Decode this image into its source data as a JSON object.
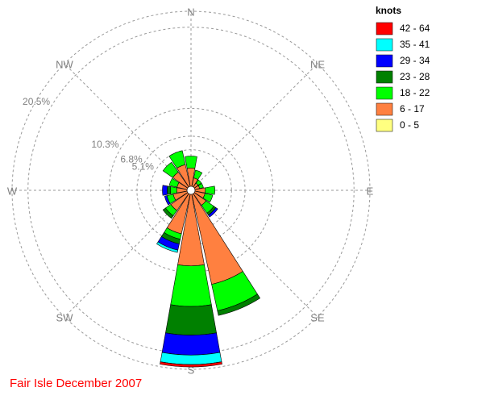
{
  "chart_data": {
    "type": "windrose",
    "title": "Fair Isle December 2007",
    "legend_title": "knots",
    "categories": [
      "N",
      null,
      "NE",
      null,
      "E",
      null,
      "SE",
      null,
      "S",
      null,
      "SW",
      null,
      "W",
      null,
      "NW",
      null
    ],
    "rlim": [
      0,
      22.5
    ],
    "rticks": [
      {
        "value": 5.1,
        "label": "5.1%"
      },
      {
        "value": 6.8,
        "label": "6.8%"
      },
      {
        "value": 10.3,
        "label": "10.3%"
      },
      {
        "value": 20.5,
        "label": "20.5%"
      }
    ],
    "series": [
      {
        "name": "0 - 5",
        "color": "#ffff80",
        "values": [
          0.3,
          0.3,
          0.3,
          0.3,
          0.3,
          0.3,
          0.3,
          0.3,
          0.3,
          0.3,
          0.3,
          0.3,
          0.3,
          0.3,
          0.3,
          0.3
        ]
      },
      {
        "name": "6 - 17",
        "color": "#ff8040",
        "values": [
          2.5,
          1.3,
          0.8,
          0.8,
          1.5,
          1.5,
          2.0,
          11.8,
          9.2,
          5.3,
          2.8,
          2.0,
          1.5,
          1.5,
          2.5,
          3.0
        ]
      },
      {
        "name": "18 - 22",
        "color": "#00ff00",
        "values": [
          1.5,
          1.0,
          0.5,
          0.5,
          1.2,
          1.0,
          1.2,
          3.4,
          5.1,
          0.7,
          0.8,
          0.8,
          0.8,
          1.0,
          1.5,
          1.8
        ]
      },
      {
        "name": "23 - 28",
        "color": "#008000",
        "values": [
          0,
          0,
          0,
          0,
          0,
          0,
          0.3,
          0.6,
          3.6,
          0.6,
          0.4,
          0,
          0.4,
          0,
          0,
          0
        ]
      },
      {
        "name": "29 - 34",
        "color": "#0000ff",
        "values": [
          0,
          0,
          0,
          0,
          0,
          0,
          0.3,
          0,
          2.5,
          0.8,
          0,
          0.3,
          0.6,
          0,
          0,
          0
        ]
      },
      {
        "name": "35 - 41",
        "color": "#00ffff",
        "values": [
          0,
          0,
          0,
          0,
          0,
          0,
          0,
          0,
          1.2,
          0.3,
          0,
          0,
          0,
          0,
          0,
          0
        ]
      },
      {
        "name": "42 - 64",
        "color": "#ff0000",
        "values": [
          0,
          0,
          0,
          0,
          0,
          0,
          0,
          0,
          0.3,
          0,
          0,
          0,
          0,
          0,
          0,
          0
        ]
      }
    ]
  }
}
